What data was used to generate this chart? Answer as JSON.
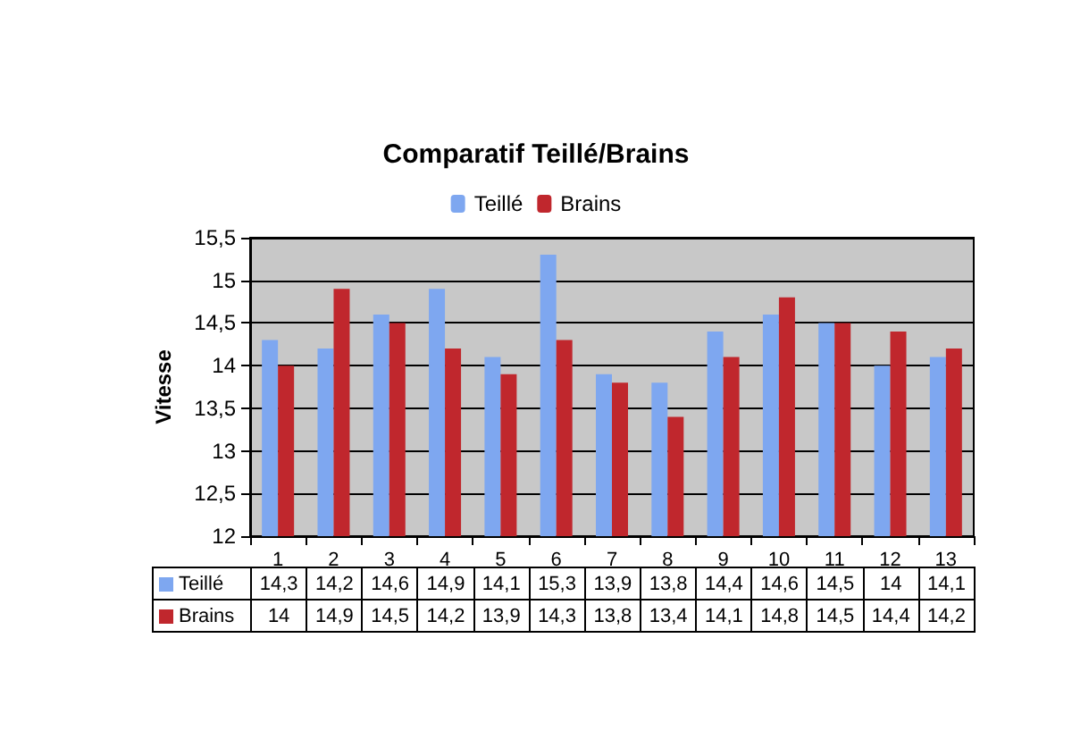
{
  "chart_data": {
    "type": "bar",
    "title": "Comparatif Teillé/Brains",
    "ylabel": "Vitesse",
    "categories": [
      "1",
      "2",
      "3",
      "4",
      "5",
      "6",
      "7",
      "8",
      "9",
      "10",
      "11",
      "12",
      "13"
    ],
    "series": [
      {
        "name": "Teillé",
        "color": "#7ea7f0",
        "values": [
          14.3,
          14.2,
          14.6,
          14.9,
          14.1,
          15.3,
          13.9,
          13.8,
          14.4,
          14.6,
          14.5,
          14,
          14.1
        ],
        "value_labels": [
          "14,3",
          "14,2",
          "14,6",
          "14,9",
          "14,1",
          "15,3",
          "13,9",
          "13,8",
          "14,4",
          "14,6",
          "14,5",
          "14",
          "14,1"
        ]
      },
      {
        "name": "Brains",
        "color": "#c0272d",
        "values": [
          14,
          14.9,
          14.5,
          14.2,
          13.9,
          14.3,
          13.8,
          13.4,
          14.1,
          14.8,
          14.5,
          14.4,
          14.2
        ],
        "value_labels": [
          "14",
          "14,9",
          "14,5",
          "14,2",
          "13,9",
          "14,3",
          "13,8",
          "13,4",
          "14,1",
          "14,8",
          "14,5",
          "14,4",
          "14,2"
        ]
      }
    ],
    "ylim": [
      12,
      15.5
    ],
    "yticks": [
      12,
      {
        "value": 12.5,
        "label": "12,5"
      },
      13,
      {
        "value": 13.5,
        "label": "13,5"
      },
      14,
      {
        "value": 14.5,
        "label": "14,5"
      },
      15,
      {
        "value": 15.5,
        "label": "15,5"
      }
    ],
    "grid": "y",
    "legend": "top"
  }
}
